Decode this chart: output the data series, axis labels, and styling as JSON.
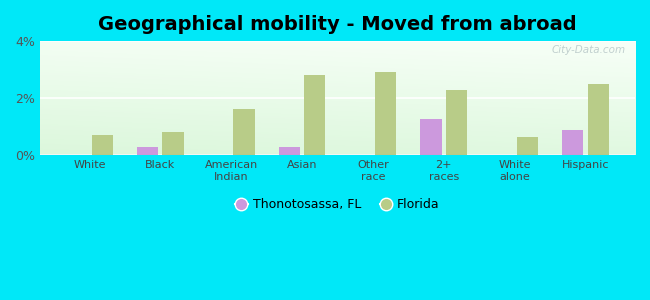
{
  "title": "Geographical mobility - Moved from abroad",
  "categories": [
    "White",
    "Black",
    "American\nIndian",
    "Asian",
    "Other\nrace",
    "2+\nraces",
    "White\nalone",
    "Hispanic"
  ],
  "thonotosassa": [
    0.0,
    0.28,
    0.0,
    0.28,
    0.0,
    1.28,
    0.0,
    0.88
  ],
  "florida": [
    0.7,
    0.8,
    1.6,
    2.8,
    2.9,
    2.28,
    0.65,
    2.5
  ],
  "thonotosassa_color": "#cc99dd",
  "florida_color": "#b8cc88",
  "background_outer": "#00e8f8",
  "background_inner_topleft": "#c8ecd8",
  "background_inner_topright": "#f0f8f0",
  "background_inner_bottom": "#e8f4e8",
  "title_fontsize": 14,
  "ylim": [
    0,
    4
  ],
  "yticks": [
    0,
    2,
    4
  ],
  "ytick_labels": [
    "0%",
    "2%",
    "4%"
  ],
  "bar_width": 0.3,
  "legend_thonotosassa": "Thonotosassa, FL",
  "legend_florida": "Florida",
  "watermark": "City-Data.com"
}
